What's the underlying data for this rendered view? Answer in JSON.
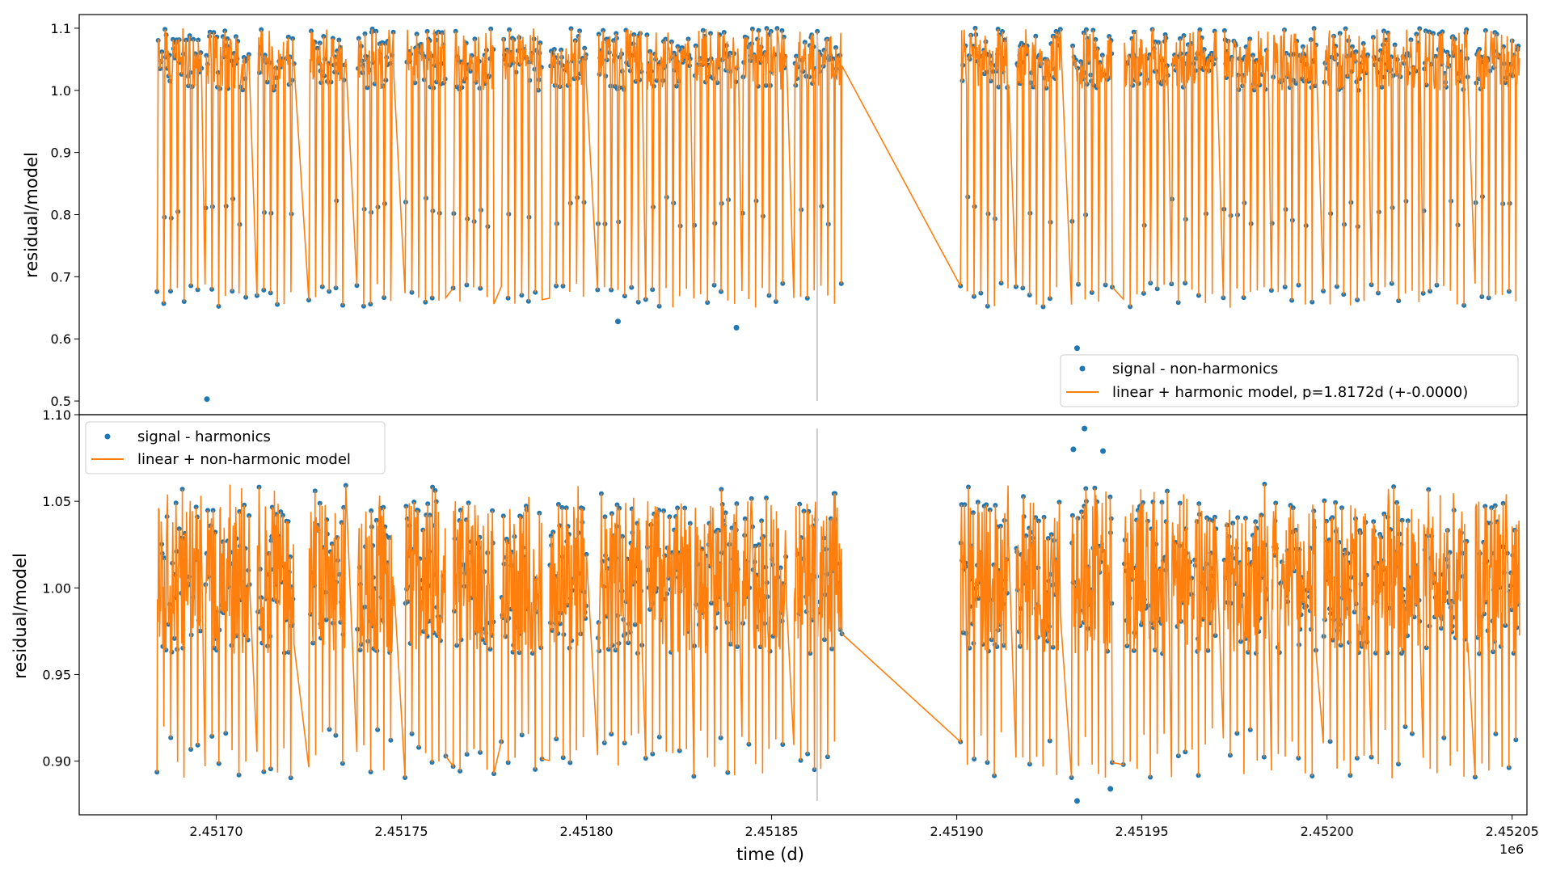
{
  "figure": {
    "xlabel": "time (d)",
    "x_offset_label": "1e6"
  },
  "chart_data": [
    {
      "type": "line",
      "panel": "top",
      "ylabel": "residual/model",
      "xlim": [
        2451663,
        2452054
      ],
      "ylim": [
        0.478,
        1.122
      ],
      "x_ticks": [
        2451700,
        2451750,
        2451800,
        2451850,
        2451900,
        2451950,
        2452000,
        2452050
      ],
      "x_tick_labels": [
        "2.45170",
        "2.45175",
        "2.45180",
        "2.45185",
        "2.45190",
        "2.45195",
        "2.45200",
        "2.45205"
      ],
      "y_ticks": [
        0.5,
        0.6,
        0.7,
        0.8,
        0.9,
        1.0,
        1.1
      ],
      "y_tick_labels": [
        "0.5",
        "0.6",
        "0.7",
        "0.8",
        "0.9",
        "1.0",
        "1.1"
      ],
      "legend": "lower-right",
      "grid": false,
      "colors": {
        "signal": "#1f77b4",
        "model": "#ff7f0e"
      },
      "observing_segments": [
        [
          2451684,
          2451696
        ],
        [
          2451697,
          2451709
        ],
        [
          2451711,
          2451721
        ],
        [
          2451725,
          2451735
        ],
        [
          2451738,
          2451748
        ],
        [
          2451751,
          2451762
        ],
        [
          2451764,
          2451775
        ],
        [
          2451777,
          2451788
        ],
        [
          2451790,
          2451800
        ],
        [
          2451803,
          2451815
        ],
        [
          2451816,
          2451828
        ],
        [
          2451829,
          2451841
        ],
        [
          2451842,
          2451854
        ],
        [
          2451856,
          2451869
        ],
        [
          2451901,
          2451914
        ],
        [
          2451916,
          2451928
        ],
        [
          2451931,
          2451942
        ],
        [
          2451945,
          2451957
        ],
        [
          2451958,
          2451970
        ],
        [
          2451972,
          2451984
        ],
        [
          2451985,
          2451997
        ],
        [
          2451999,
          2452011
        ],
        [
          2452012,
          2452025
        ],
        [
          2452026,
          2452038
        ],
        [
          2452040,
          2452052
        ]
      ],
      "period_d": 1.8172,
      "levels": {
        "baseline": 1.04,
        "upper": 1.08,
        "shoulder": 0.78,
        "eclipse_min": 0.65
      },
      "outliers": [
        [
          2451697.5,
          0.503
        ],
        [
          2451808.5,
          0.628
        ],
        [
          2451840.5,
          0.618
        ],
        [
          2451932.5,
          0.585
        ]
      ],
      "series": [
        {
          "name": "signal - non-harmonics",
          "kind": "scatter"
        },
        {
          "name": "linear + harmonic model, p=1.8172d (+-0.0000)",
          "kind": "line"
        }
      ]
    },
    {
      "type": "line",
      "panel": "bottom",
      "ylabel": "residual/model",
      "xlim": [
        2451663,
        2452054
      ],
      "ylim": [
        0.869,
        1.1
      ],
      "x_ticks": [
        2451700,
        2451750,
        2451800,
        2451850,
        2451900,
        2451950,
        2452000,
        2452050
      ],
      "x_tick_labels": [
        "2.45170",
        "2.45175",
        "2.45180",
        "2.45185",
        "2.45190",
        "2.45195",
        "2.45200",
        "2.45205"
      ],
      "y_ticks": [
        0.9,
        0.95,
        1.0,
        1.05,
        1.1
      ],
      "y_tick_labels": [
        "0.90",
        "0.95",
        "1.00",
        "1.05",
        "1.10"
      ],
      "legend": "upper-left",
      "grid": false,
      "colors": {
        "signal": "#1f77b4",
        "model": "#ff7f0e"
      },
      "levels": {
        "band_high": 1.05,
        "band_low": 0.962,
        "dip_min": 0.89
      },
      "outliers": [
        [
          2451931.5,
          1.08
        ],
        [
          2451934.5,
          1.092
        ],
        [
          2451939.5,
          1.079
        ],
        [
          2451932.5,
          0.877
        ],
        [
          2451941.5,
          0.884
        ]
      ],
      "series": [
        {
          "name": "signal - harmonics",
          "kind": "scatter"
        },
        {
          "name": "linear + non-harmonic model",
          "kind": "line"
        }
      ]
    }
  ]
}
